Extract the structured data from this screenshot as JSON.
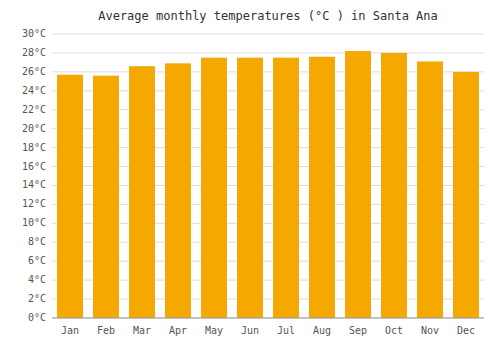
{
  "chart_data": {
    "type": "bar",
    "title": "Average monthly temperatures (°C ) in Santa Ana",
    "categories": [
      "Jan",
      "Feb",
      "Mar",
      "Apr",
      "May",
      "Jun",
      "Jul",
      "Aug",
      "Sep",
      "Oct",
      "Nov",
      "Dec"
    ],
    "values": [
      25.7,
      25.6,
      26.6,
      26.9,
      27.5,
      27.5,
      27.5,
      27.6,
      28.2,
      28.0,
      27.1,
      26.0
    ],
    "color": "#F5A800",
    "ylim": [
      0,
      30
    ],
    "yticks": [
      {
        "value": 0,
        "label": "0°C"
      },
      {
        "value": 2,
        "label": "2°C"
      },
      {
        "value": 4,
        "label": "4°C"
      },
      {
        "value": 6,
        "label": "6°C"
      },
      {
        "value": 8,
        "label": "8°C"
      },
      {
        "value": 10,
        "label": "10°C"
      },
      {
        "value": 12,
        "label": "12°C"
      },
      {
        "value": 14,
        "label": "14°C"
      },
      {
        "value": 16,
        "label": "16°C"
      },
      {
        "value": 18,
        "label": "18°C"
      },
      {
        "value": 20,
        "label": "20°C"
      },
      {
        "value": 22,
        "label": "22°C"
      },
      {
        "value": 24,
        "label": "24°C"
      },
      {
        "value": 26,
        "label": "26°C"
      },
      {
        "value": 28,
        "label": "28°C"
      },
      {
        "value": 30,
        "label": "30°C"
      }
    ],
    "grid": true
  }
}
